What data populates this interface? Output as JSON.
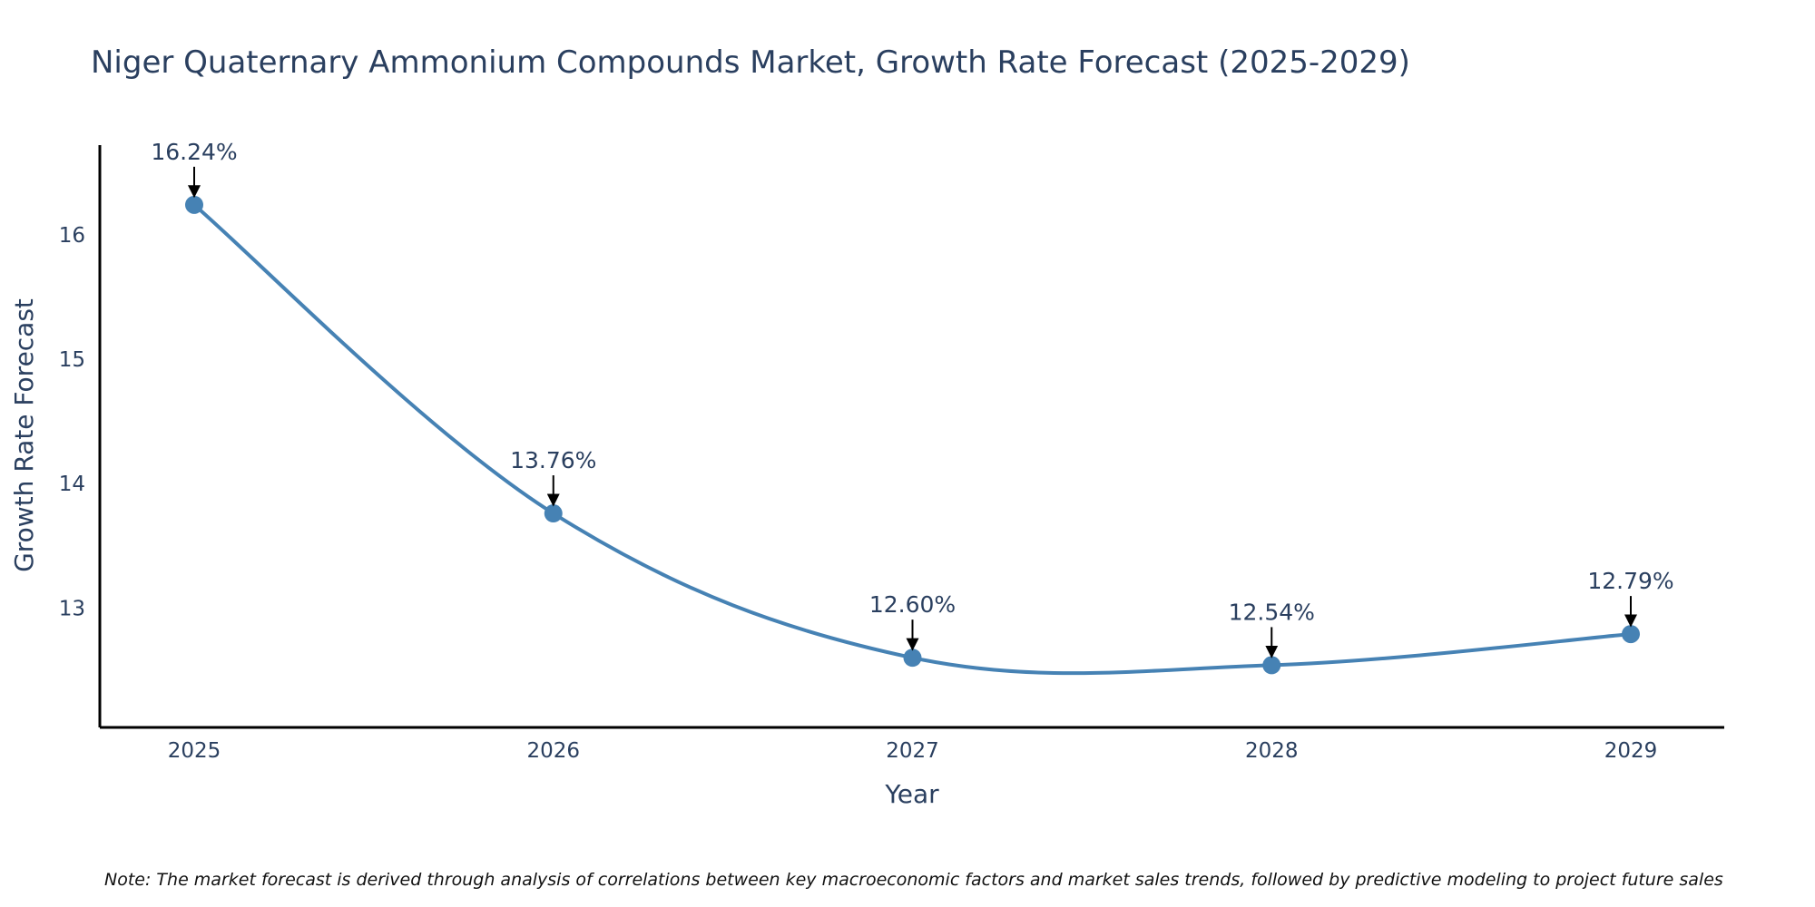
{
  "chart_data": {
    "type": "line",
    "title": "Niger Quaternary Ammonium Compounds Market, Growth Rate Forecast (2025-2029)",
    "xlabel": "Year",
    "ylabel": "Growth Rate Forecast",
    "categories": [
      "2025",
      "2026",
      "2027",
      "2028",
      "2029"
    ],
    "series": [
      {
        "name": "Growth Rate Forecast",
        "values": [
          16.24,
          13.76,
          12.6,
          12.54,
          12.79
        ],
        "labels": [
          "16.24%",
          "13.76%",
          "12.60%",
          "12.54%",
          "12.79%"
        ]
      }
    ],
    "y_ticks": [
      "13",
      "14",
      "15",
      "16"
    ],
    "y_tick_values": [
      13,
      14,
      15,
      16
    ],
    "ylim": [
      12.04,
      16.72
    ],
    "line_shape": "spline",
    "grid": false,
    "legend": "none",
    "note": "Note: The market forecast is derived through analysis of correlations between key macroeconomic factors and market sales trends, followed by predictive modeling to project future sales",
    "colors": {
      "line": "#4682b4",
      "marker": "#4682b4",
      "axis": "#000000",
      "text": "#2a3f5f"
    }
  }
}
